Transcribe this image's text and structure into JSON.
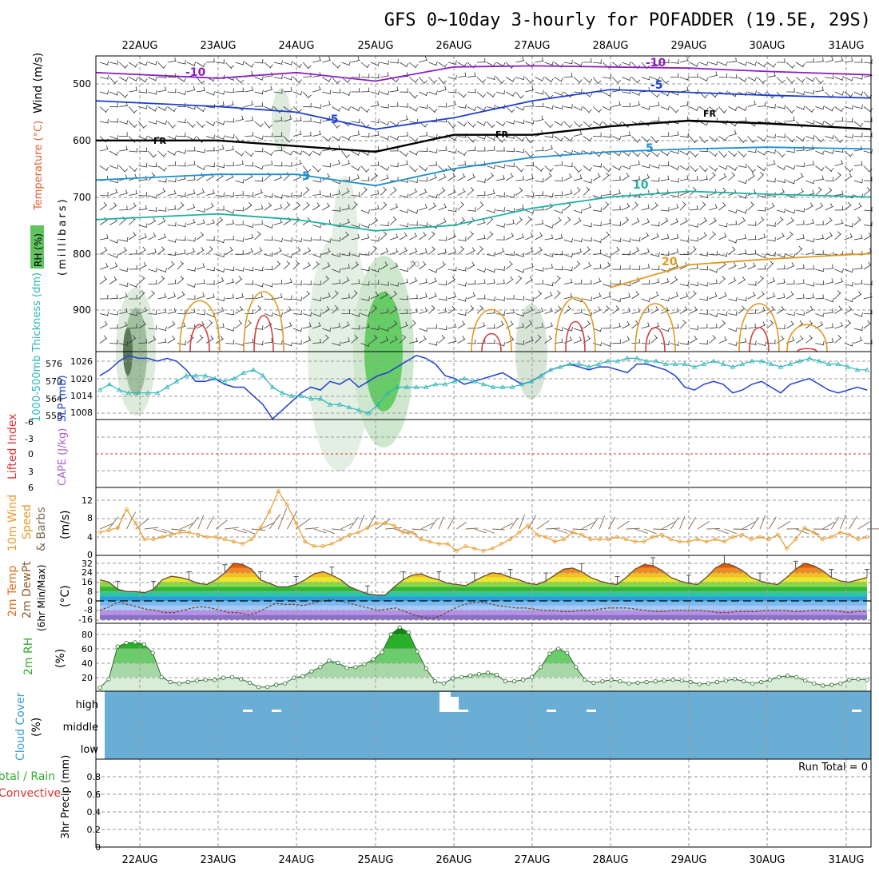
{
  "header": {
    "title": "GFS 0~10day 3-hourly for POFADDER (19.5E, 29S)",
    "dates": [
      "22AUG",
      "23AUG",
      "24AUG",
      "25AUG",
      "26AUG",
      "27AUG",
      "28AUG",
      "29AUG",
      "30AUG",
      "31AUG"
    ]
  },
  "colors": {
    "slp": "#1f3fcf",
    "thickness": "#2bb5b8",
    "wind_speed": "#e89a2a",
    "barb": "#7a6650",
    "rh": "#44aa33",
    "cloud": "#6aaed6",
    "li": "#dd3333",
    "cape": "#b060c8",
    "rain_total": "#33aa33",
    "rain_conv": "#dd3333",
    "temp": "#e07020",
    "rh_title": "#33aa33",
    "cloud_title": "#3a9ecf"
  },
  "panels": {
    "upper": {
      "ylabel_parts": [
        "Wind (m/s)",
        "Temperature (°C)",
        "RH (%)"
      ],
      "unit": "(millibars)",
      "yticks": [
        "500",
        "600",
        "700",
        "800",
        "900"
      ],
      "contour_labels": [
        "-10",
        "-10",
        "-5",
        "-5",
        "5",
        "5",
        "FR",
        "FR",
        "FR",
        "5",
        "10",
        "20",
        "10"
      ],
      "chart_data": {
        "type": "contour",
        "levels_hpa": [
          500,
          600,
          700,
          800,
          900
        ],
        "isotherms": [
          {
            "name": "-10",
            "points": [
              [
                0,
                480
              ],
              [
                1,
                490
              ],
              [
                2,
                480
              ],
              [
                3,
                495
              ],
              [
                4,
                470
              ],
              [
                5,
                468
              ],
              [
                6,
                470
              ],
              [
                7,
                472
              ],
              [
                8,
                478
              ],
              [
                9,
                484
              ]
            ]
          },
          {
            "name": "-5",
            "points": [
              [
                0,
                530
              ],
              [
                1,
                540
              ],
              [
                2,
                550
              ],
              [
                3,
                580
              ],
              [
                4,
                560
              ],
              [
                5,
                530
              ],
              [
                6,
                510
              ],
              [
                7,
                515
              ],
              [
                8,
                520
              ],
              [
                9,
                525
              ]
            ]
          },
          {
            "name": "FR",
            "points": [
              [
                0,
                600
              ],
              [
                1,
                600
              ],
              [
                2,
                610
              ],
              [
                3,
                620
              ],
              [
                4,
                590
              ],
              [
                5,
                590
              ],
              [
                6,
                575
              ],
              [
                7,
                565
              ],
              [
                8,
                570
              ],
              [
                9,
                580
              ]
            ]
          },
          {
            "name": "5",
            "points": [
              [
                0,
                670
              ],
              [
                1,
                660
              ],
              [
                2,
                660
              ],
              [
                3,
                680
              ],
              [
                4,
                650
              ],
              [
                5,
                630
              ],
              [
                6,
                620
              ],
              [
                7,
                615
              ],
              [
                8,
                612
              ],
              [
                9,
                615
              ]
            ]
          },
          {
            "name": "10",
            "points": [
              [
                0,
                740
              ],
              [
                1,
                730
              ],
              [
                2,
                740
              ],
              [
                3,
                760
              ],
              [
                4,
                750
              ],
              [
                5,
                720
              ],
              [
                6,
                700
              ],
              [
                7,
                690
              ],
              [
                8,
                695
              ],
              [
                9,
                700
              ]
            ]
          },
          {
            "name": "20",
            "points": [
              [
                6,
                860
              ],
              [
                7,
                820
              ],
              [
                8,
                810
              ],
              [
                9,
                800
              ]
            ]
          }
        ]
      }
    },
    "slp": {
      "label_left": "1000-500mb Thickness (dm)",
      "label_right": "SLP (mb)",
      "yticks_left": [
        "576",
        "570",
        "564",
        "558"
      ],
      "yticks_right": [
        "1026",
        "1020",
        "1014",
        "1008"
      ],
      "chart_data": {
        "type": "line",
        "x_start": "21AUG 12Z",
        "x_step_hours": 3,
        "series": [
          {
            "name": "SLP (mb)",
            "values": [
              1021,
              1023,
              1026,
              1028,
              1027,
              1027,
              1026,
              1027,
              1026,
              1023,
              1019,
              1019,
              1020,
              1018,
              1017,
              1017,
              1014,
              1011,
              1006,
              1009,
              1012,
              1015,
              1017,
              1016,
              1019,
              1018,
              1020,
              1017,
              1019,
              1021,
              1022,
              1024,
              1026,
              1028,
              1027,
              1025,
              1021,
              1020,
              1018,
              1019,
              1020,
              1021,
              1022,
              1020,
              1018,
              1019,
              1021,
              1023,
              1024,
              1025,
              1024,
              1023,
              1024,
              1024,
              1023,
              1022,
              1025,
              1025,
              1024,
              1023,
              1021,
              1017,
              1016,
              1018,
              1019,
              1018,
              1015,
              1016,
              1018,
              1019,
              1017,
              1015,
              1018,
              1019,
              1020,
              1018,
              1016,
              1015,
              1016,
              1017,
              1016
            ]
          },
          {
            "name": "Thickness (dm)",
            "values": [
              566,
              568,
              566,
              565,
              565,
              565,
              565,
              567,
              569,
              571,
              571,
              571,
              570,
              569,
              570,
              572,
              573,
              571,
              567,
              565,
              564,
              564,
              563,
              563,
              561,
              561,
              560,
              559,
              558,
              561,
              565,
              567,
              567,
              567,
              567,
              568,
              568,
              569,
              570,
              569,
              568,
              567,
              567,
              567,
              568,
              569,
              571,
              573,
              574,
              575,
              575,
              574,
              575,
              576,
              576,
              577,
              577,
              576,
              576,
              575,
              575,
              575,
              574,
              575,
              576,
              575,
              574,
              575,
              576,
              576,
              575,
              574,
              575,
              576,
              577,
              576,
              575,
              575,
              574,
              573,
              573
            ]
          }
        ]
      }
    },
    "li": {
      "label_left": "Lifted Index",
      "label_right": "CAPE (J/kg)",
      "yticks": [
        "-6",
        "-3",
        "0",
        "3",
        "6"
      ],
      "chart_data": {
        "type": "line",
        "series": [
          {
            "name": "Lifted Index",
            "values": []
          },
          {
            "name": "CAPE (J/kg)",
            "values": []
          }
        ],
        "ylim": [
          -6,
          6
        ]
      }
    },
    "wind": {
      "label": [
        "10m Wind",
        "Speed",
        "& Barbs"
      ],
      "unit": "(m/s)",
      "yticks": [
        "0",
        "4",
        "8",
        "12"
      ],
      "chart_data": {
        "type": "line",
        "series": [
          {
            "name": "10m Wind Speed (m/s)",
            "values": [
              5,
              5.5,
              6,
              10,
              7,
              3.5,
              3.5,
              4,
              4.5,
              5,
              5,
              4.5,
              4,
              4,
              3.5,
              3,
              2.5,
              3.5,
              6,
              9.5,
              14,
              11,
              7,
              3,
              2,
              2,
              2.5,
              3.5,
              4.5,
              5,
              6,
              7,
              7,
              6.5,
              5,
              5,
              3.5,
              3,
              2.5,
              2.5,
              1,
              2,
              1.5,
              1,
              1.5,
              2.5,
              3.5,
              5,
              6.5,
              4.5,
              4,
              3,
              3.5,
              5,
              4.5,
              3.5,
              3.5,
              3.5,
              4,
              3.5,
              3,
              3,
              4,
              4.5,
              3.5,
              3,
              3,
              3.5,
              3,
              3.5,
              3,
              4,
              4.5,
              3.5,
              4,
              3.5,
              4.5,
              1.5,
              3.5,
              6,
              5,
              3.5,
              4,
              5,
              4.5,
              3.5,
              4
            ]
          }
        ],
        "ylim": [
          0,
          14
        ]
      }
    },
    "temp": {
      "label": [
        "2m Temp",
        "2m DewPt",
        "(6hr Min/Max)"
      ],
      "unit": "(°C)",
      "yticks": [
        "32",
        "24",
        "16",
        "8",
        "0",
        "-8",
        "-16"
      ],
      "chart_data": {
        "type": "area",
        "series": [
          {
            "name": "2m Temp",
            "values": [
              18,
              16,
              10,
              8,
              8,
              7,
              10,
              18,
              21,
              20,
              18,
              15,
              14,
              18,
              24,
              32,
              31,
              27,
              18,
              15,
              12,
              12,
              14,
              18,
              23,
              25,
              22,
              18,
              12,
              9,
              6,
              5,
              5,
              12,
              18,
              22,
              23,
              20,
              18,
              15,
              14,
              13,
              17,
              21,
              24,
              23,
              20,
              18,
              15,
              14,
              17,
              22,
              27,
              28,
              25,
              20,
              17,
              15,
              14,
              20,
              27,
              31,
              30,
              26,
              20,
              17,
              15,
              14,
              20,
              28,
              32,
              30,
              26,
              20,
              17,
              15,
              14,
              20,
              27,
              32,
              30,
              26,
              20,
              17,
              16,
              18,
              20
            ]
          },
          {
            "name": "2m DewPt",
            "values": [
              -8,
              -5,
              -1,
              -3,
              -5,
              -7,
              -8,
              -10,
              -10,
              -8,
              -6,
              -5,
              -6,
              -8,
              -10,
              -10,
              -12,
              -10,
              -6,
              -2,
              -3,
              -3,
              -4,
              -2,
              0,
              1,
              0,
              -2,
              -4,
              -6,
              -8,
              -7,
              -6,
              -9,
              -12,
              -14,
              -15,
              -12,
              -8,
              -4,
              -2,
              -1,
              -2,
              -4,
              -5,
              -6,
              -6,
              -7,
              -8,
              -8,
              -9,
              -9,
              -8,
              -8,
              -7,
              -6,
              -6,
              -6,
              -7,
              -8,
              -9,
              -9,
              -8,
              -8,
              -8,
              -8,
              -9,
              -10,
              -10,
              -9,
              -9,
              -9,
              -8,
              -8,
              -8,
              -9,
              -9,
              -8,
              -8,
              -8,
              -9,
              -10,
              -9,
              -9
            ]
          }
        ],
        "ylim": [
          -16,
          32
        ]
      }
    },
    "rh": {
      "label": "2m RH",
      "unit": "(%)",
      "yticks": [
        "20",
        "40",
        "60",
        "80"
      ],
      "chart_data": {
        "type": "area",
        "series": [
          {
            "name": "2m RH",
            "values": [
              5,
              17,
              63,
              68,
              69,
              66,
              54,
              20,
              13,
              11,
              13,
              15,
              16,
              16,
              19,
              20,
              17,
              12,
              6,
              6,
              9,
              11,
              19,
              21,
              28,
              34,
              43,
              40,
              33,
              34,
              38,
              45,
              55,
              80,
              90,
              83,
              56,
              32,
              14,
              11,
              18,
              20,
              22,
              24,
              26,
              23,
              14,
              14,
              16,
              20,
              34,
              53,
              60,
              54,
              34,
              16,
              12,
              14,
              16,
              14,
              11,
              12,
              13,
              14,
              15,
              16,
              15,
              13,
              10,
              11,
              13,
              15,
              17,
              14,
              11,
              13,
              16,
              20,
              22,
              20,
              15,
              11,
              8,
              9,
              11,
              16,
              17,
              16
            ]
          }
        ],
        "ylim": [
          0,
          100
        ]
      }
    },
    "cloud": {
      "label": "Cloud Cover",
      "unit": "(%)",
      "levels": [
        "high",
        "middle",
        "low"
      ]
    },
    "precip": {
      "label_left": "Total / Rain",
      "label_conv": "Convective",
      "unit": "3hr Precip (mm)",
      "run_total": "Run Total = 0",
      "yticks": [
        "0",
        "0.2",
        "0.4",
        "0.6",
        "0.8"
      ],
      "chart_data": {
        "type": "bar",
        "series": [
          {
            "name": "Total / Rain",
            "values": []
          },
          {
            "name": "Convective",
            "values": []
          }
        ],
        "ylim": [
          0,
          1
        ]
      }
    }
  }
}
